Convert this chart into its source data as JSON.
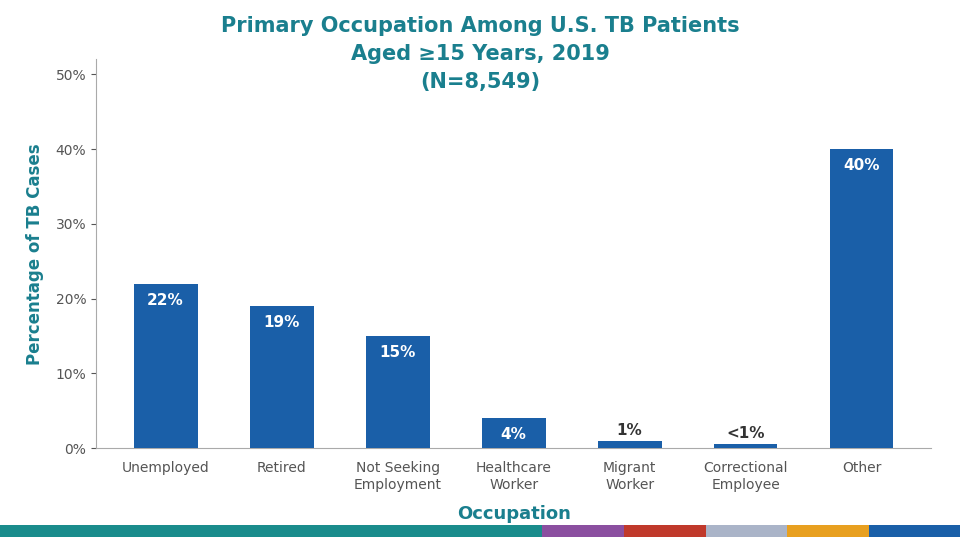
{
  "title_line1": "Primary Occupation Among U.S. TB Patients",
  "title_line2": "Aged ≥15 Years, 2019",
  "title_line3": "(N=8,549)",
  "title_color": "#1a7f8e",
  "categories": [
    "Unemployed",
    "Retired",
    "Not Seeking\nEmployment",
    "Healthcare\nWorker",
    "Migrant\nWorker",
    "Correctional\nEmployee",
    "Other"
  ],
  "values": [
    22,
    19,
    15,
    4,
    1,
    0.5,
    40
  ],
  "bar_color": "#1a5fa8",
  "bar_labels": [
    "22%",
    "19%",
    "15%",
    "4%",
    "1%",
    "<1%",
    "40%"
  ],
  "bar_label_is_inside": [
    true,
    true,
    true,
    true,
    false,
    false,
    true
  ],
  "xlabel": "Occupation",
  "ylabel": "Percentage of TB Cases",
  "xlabel_color": "#1a7f8e",
  "ylabel_color": "#1a7f8e",
  "axis_label_color": "#555555",
  "yticks": [
    0,
    10,
    20,
    30,
    40,
    50
  ],
  "ylim": [
    0,
    52
  ],
  "background_color": "#ffffff",
  "bottom_bar_colors": [
    "#1a8c8c",
    "#8b4fa0",
    "#c0392b",
    "#aab4c8",
    "#e8a020",
    "#1a5fa8"
  ],
  "bottom_bar_fracs": [
    0.565,
    0.085,
    0.085,
    0.085,
    0.085,
    0.095
  ]
}
